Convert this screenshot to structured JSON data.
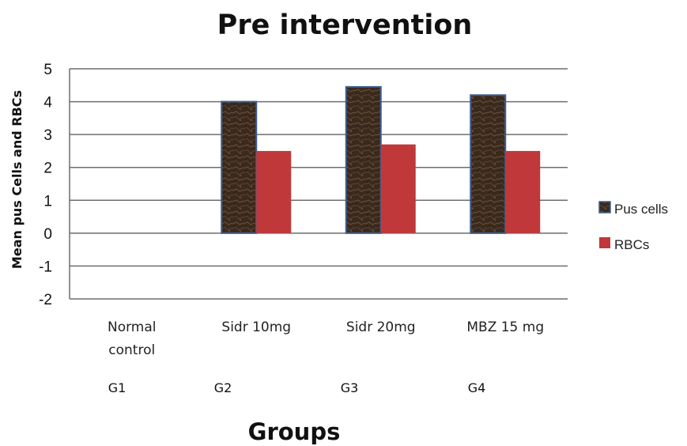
{
  "chart_data": {
    "type": "bar",
    "title": "Pre intervention",
    "xlabel": "Groups",
    "ylabel": "Mean pus Cells and RBCs",
    "ylim": [
      -2,
      5
    ],
    "yticks": [
      "-2",
      "-1",
      "0",
      "1",
      "2",
      "3",
      "4",
      "5"
    ],
    "categories": [
      "Normal control",
      "Sidr 10mg",
      "Sidr 20mg",
      "MBZ 15 mg"
    ],
    "category_lines": [
      [
        "Normal",
        "control"
      ],
      [
        "Sidr 10mg"
      ],
      [
        "Sidr 20mg"
      ],
      [
        "MBZ 15 mg"
      ]
    ],
    "groups": [
      "G1",
      "G2",
      "G3",
      "G4"
    ],
    "series": [
      {
        "name": "Pus cells",
        "values": [
          0,
          4.0,
          4.45,
          4.2
        ],
        "color": "#3a2a1e"
      },
      {
        "name": "RBCs",
        "values": [
          0,
          2.5,
          2.7,
          2.5
        ],
        "color": "#c0383a"
      }
    ],
    "grid": true,
    "legend_position": "right"
  }
}
